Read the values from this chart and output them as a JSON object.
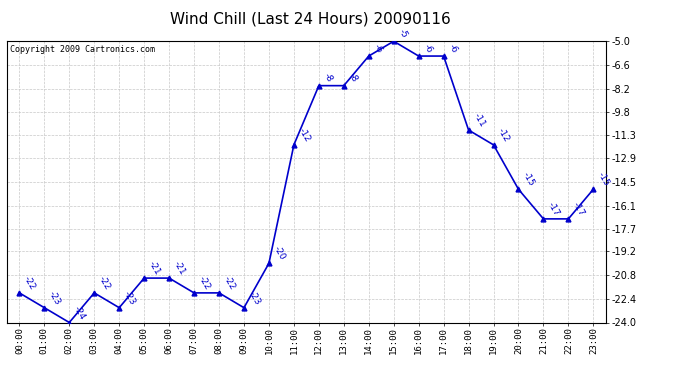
{
  "title": "Wind Chill (Last 24 Hours) 20090116",
  "copyright": "Copyright 2009 Cartronics.com",
  "hours": [
    "00:00",
    "01:00",
    "02:00",
    "03:00",
    "04:00",
    "05:00",
    "06:00",
    "07:00",
    "08:00",
    "09:00",
    "10:00",
    "11:00",
    "12:00",
    "13:00",
    "14:00",
    "15:00",
    "16:00",
    "17:00",
    "18:00",
    "19:00",
    "20:00",
    "21:00",
    "22:00",
    "23:00"
  ],
  "values": [
    -22,
    -23,
    -24,
    -22,
    -23,
    -21,
    -21,
    -22,
    -22,
    -23,
    -20,
    -12,
    -8,
    -8,
    -6,
    -5,
    -6,
    -6,
    -11,
    -12,
    -15,
    -17,
    -17,
    -15
  ],
  "ylim_min": -24.0,
  "ylim_max": -5.0,
  "yticks": [
    -24.0,
    -22.4,
    -20.8,
    -19.2,
    -17.7,
    -16.1,
    -14.5,
    -12.9,
    -11.3,
    -9.8,
    -8.2,
    -6.6,
    -5.0
  ],
  "line_color": "#0000CC",
  "marker_color": "#0000CC",
  "bg_color": "#ffffff",
  "grid_color": "#c8c8c8",
  "title_fontsize": 11,
  "annotation_fontsize": 6.5,
  "copyright_fontsize": 6,
  "xtick_fontsize": 6.5,
  "ytick_fontsize": 7
}
